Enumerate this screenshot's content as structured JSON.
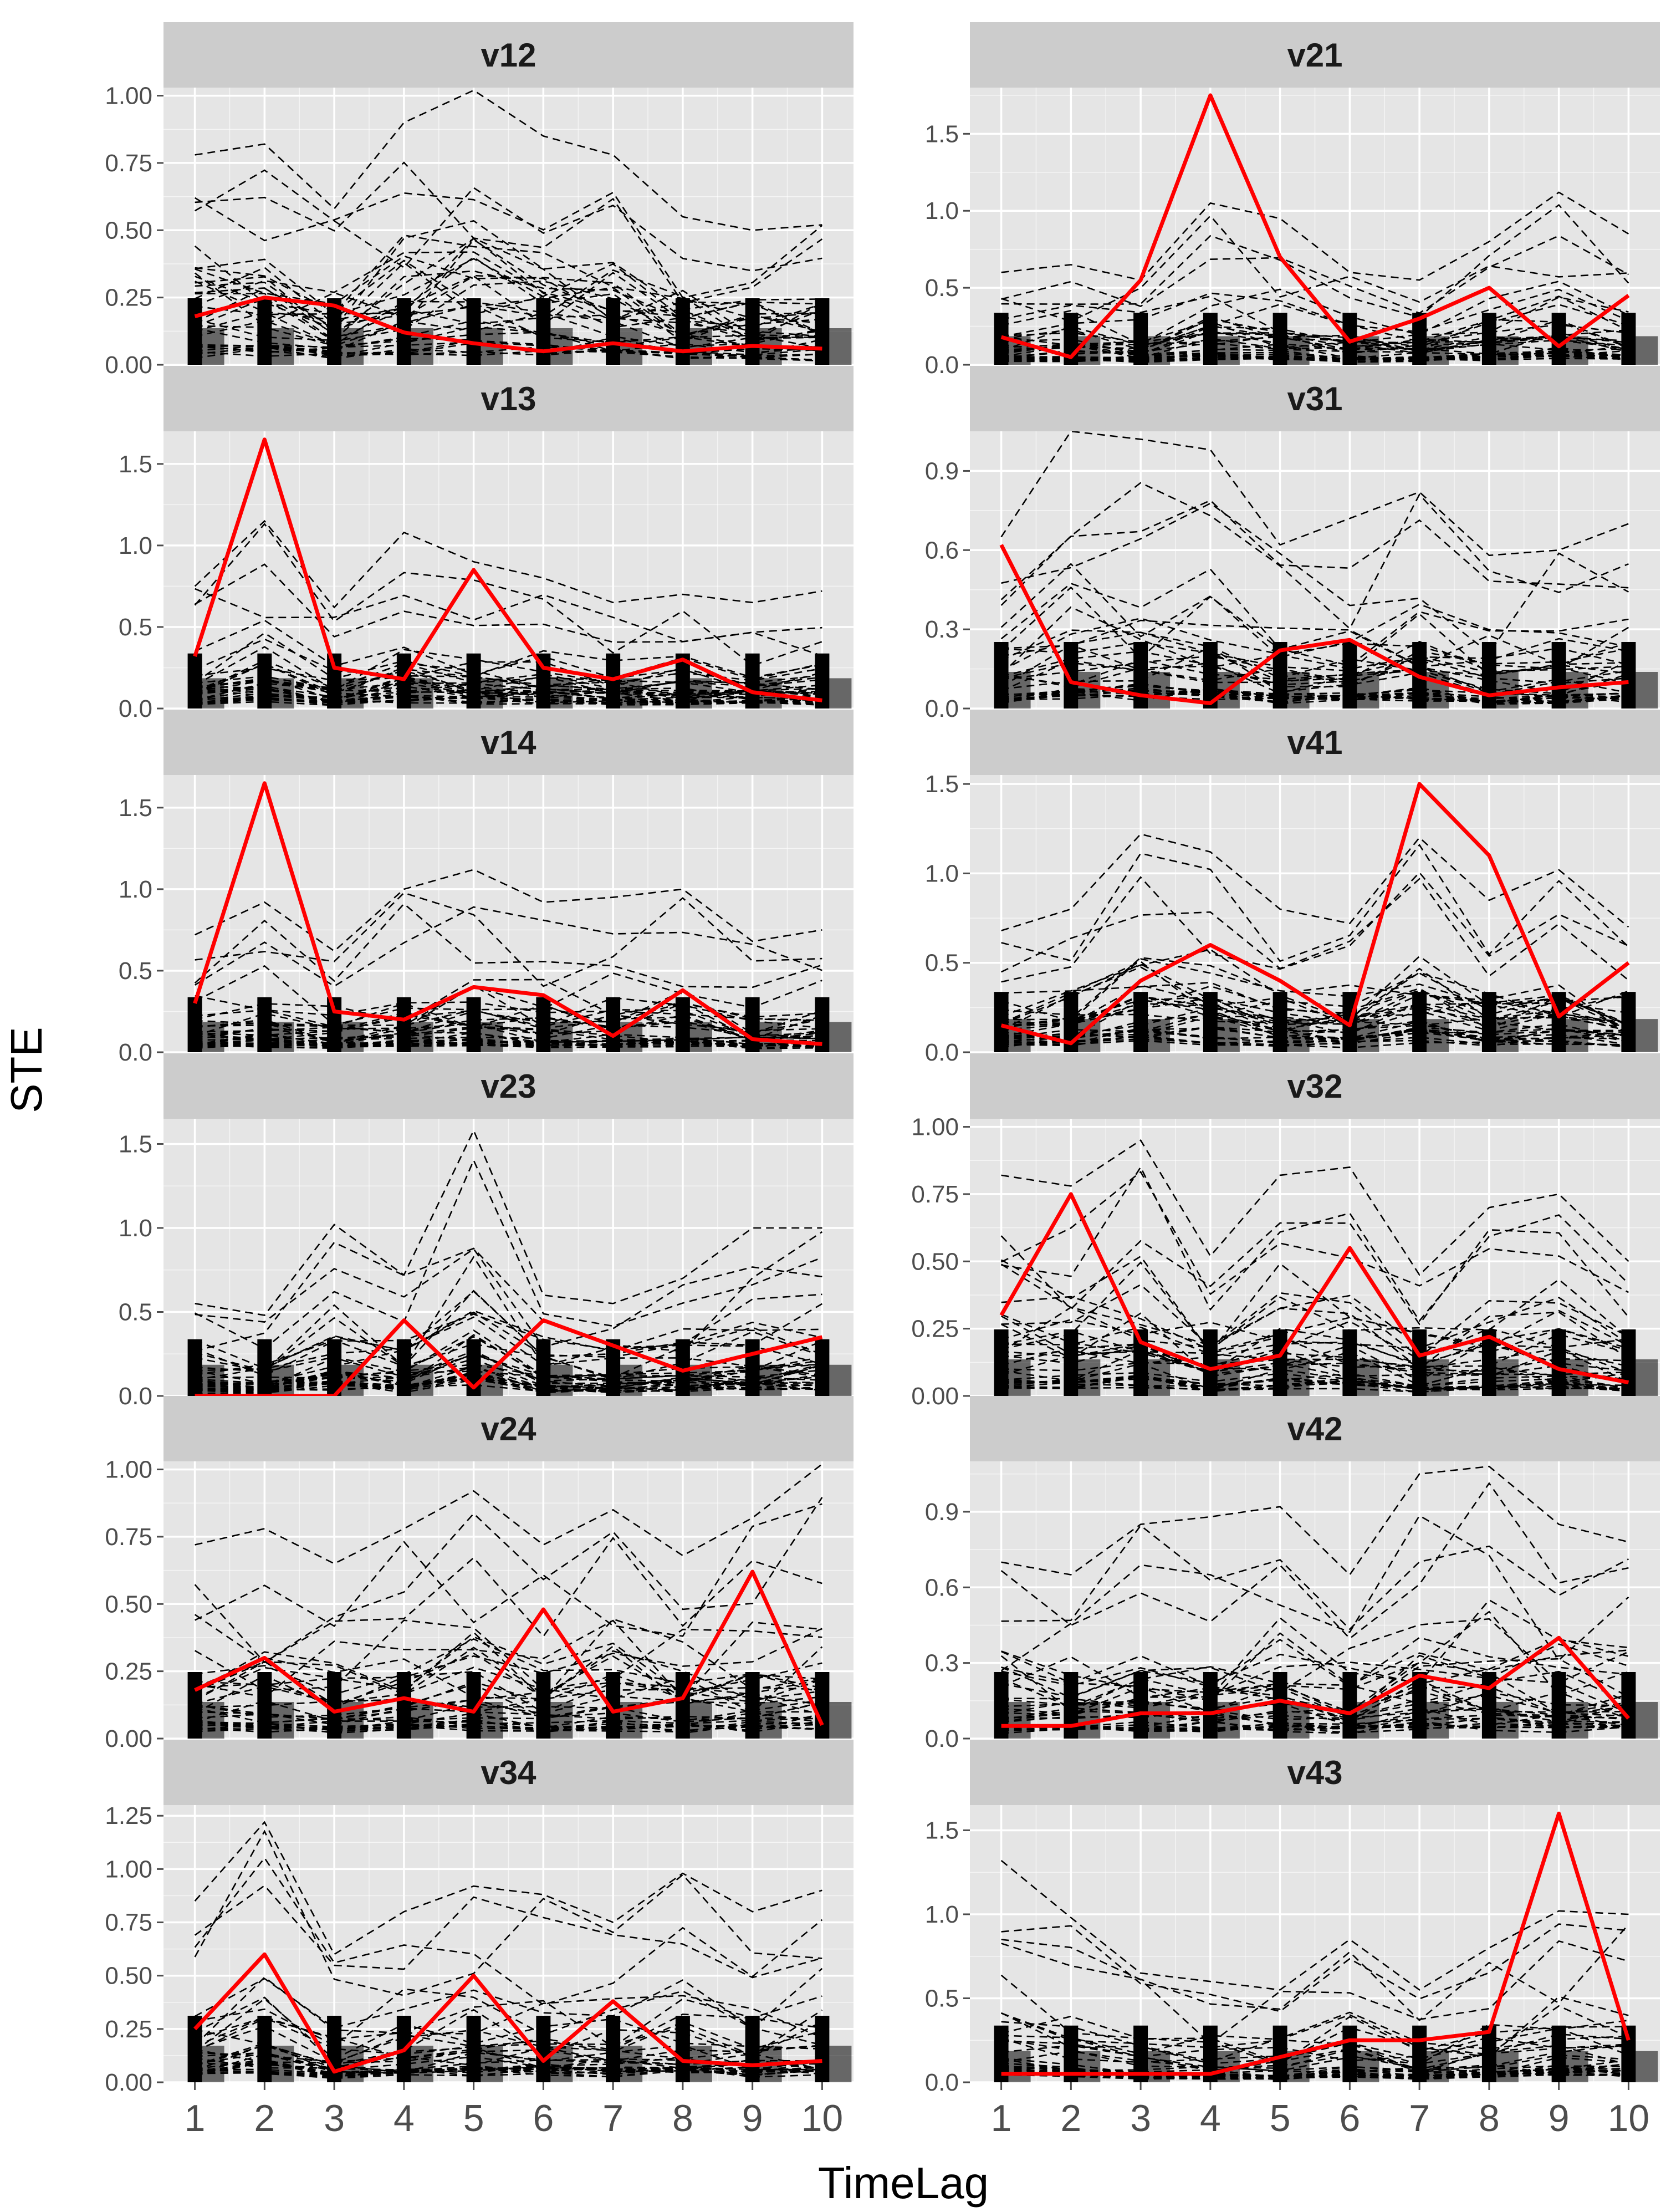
{
  "chart_data": {
    "type": "line",
    "xlabel": "TimeLag",
    "ylabel": "STE",
    "x_ticks": [
      1,
      2,
      3,
      4,
      5,
      6,
      7,
      8,
      9,
      10
    ],
    "colors": {
      "panel_background": "#e5e5e5",
      "grid": "#ffffff",
      "strip_background": "#cccccc",
      "surrogate_lines": "#000000",
      "observed_line": "#ff0000"
    },
    "layout": {
      "columns": 2,
      "rows": 6
    },
    "series_description": {
      "surrogate": "many black dashed lines (surrogate STE values)",
      "observed": "red solid line"
    },
    "panels": [
      {
        "label": "v12",
        "ylim": [
          0,
          1.03
        ],
        "yticks": [
          0,
          0.25,
          0.5,
          0.75,
          1.0
        ],
        "ytick_labels": [
          "0.00",
          "0.25",
          "0.50",
          "0.75",
          "1.00"
        ],
        "observed": [
          0.18,
          0.25,
          0.22,
          0.12,
          0.08,
          0.05,
          0.08,
          0.05,
          0.07,
          0.06
        ],
        "surrogate_max": [
          0.78,
          0.82,
          0.58,
          0.9,
          1.02,
          0.85,
          0.78,
          0.55,
          0.5,
          0.52
        ]
      },
      {
        "label": "v21",
        "ylim": [
          0,
          1.8
        ],
        "yticks": [
          0,
          0.5,
          1.0,
          1.5
        ],
        "ytick_labels": [
          "0.0",
          "0.5",
          "1.0",
          "1.5"
        ],
        "observed": [
          0.18,
          0.05,
          0.55,
          1.75,
          0.7,
          0.15,
          0.3,
          0.5,
          0.12,
          0.45
        ],
        "surrogate_max": [
          0.6,
          0.65,
          0.55,
          1.05,
          0.95,
          0.6,
          0.55,
          0.8,
          1.12,
          0.85
        ]
      },
      {
        "label": "v13",
        "ylim": [
          0,
          1.7
        ],
        "yticks": [
          0,
          0.5,
          1.0,
          1.5
        ],
        "ytick_labels": [
          "0.0",
          "0.5",
          "1.0",
          "1.5"
        ],
        "observed": [
          0.32,
          1.65,
          0.25,
          0.18,
          0.85,
          0.25,
          0.18,
          0.3,
          0.1,
          0.05
        ],
        "surrogate_max": [
          0.75,
          1.15,
          0.62,
          1.08,
          0.9,
          0.8,
          0.65,
          0.7,
          0.65,
          0.72
        ]
      },
      {
        "label": "v31",
        "ylim": [
          0,
          1.05
        ],
        "yticks": [
          0,
          0.3,
          0.6,
          0.9
        ],
        "ytick_labels": [
          "0.0",
          "0.3",
          "0.6",
          "0.9"
        ],
        "observed": [
          0.62,
          0.1,
          0.05,
          0.02,
          0.22,
          0.26,
          0.12,
          0.05,
          0.08,
          0.1
        ],
        "surrogate_max": [
          0.65,
          1.05,
          1.02,
          0.98,
          0.62,
          0.72,
          0.82,
          0.58,
          0.6,
          0.7
        ]
      },
      {
        "label": "v14",
        "ylim": [
          0,
          1.7
        ],
        "yticks": [
          0,
          0.5,
          1.0,
          1.5
        ],
        "ytick_labels": [
          "0.0",
          "0.5",
          "1.0",
          "1.5"
        ],
        "observed": [
          0.3,
          1.65,
          0.25,
          0.2,
          0.4,
          0.35,
          0.1,
          0.38,
          0.08,
          0.05
        ],
        "surrogate_max": [
          0.72,
          0.92,
          0.62,
          1.0,
          1.12,
          0.92,
          0.95,
          1.0,
          0.68,
          0.75
        ]
      },
      {
        "label": "v41",
        "ylim": [
          0,
          1.55
        ],
        "yticks": [
          0,
          0.5,
          1.0,
          1.5
        ],
        "ytick_labels": [
          "0.0",
          "0.5",
          "1.0",
          "1.5"
        ],
        "observed": [
          0.15,
          0.05,
          0.4,
          0.6,
          0.4,
          0.15,
          1.5,
          1.1,
          0.2,
          0.5
        ],
        "surrogate_max": [
          0.68,
          0.8,
          1.22,
          1.12,
          0.8,
          0.72,
          1.2,
          0.85,
          1.02,
          0.7
        ]
      },
      {
        "label": "v23",
        "ylim": [
          0,
          1.65
        ],
        "yticks": [
          0,
          0.5,
          1.0,
          1.5
        ],
        "ytick_labels": [
          "0.0",
          "0.5",
          "1.0",
          "1.5"
        ],
        "observed": [
          0.0,
          0.0,
          0.0,
          0.45,
          0.05,
          0.45,
          0.3,
          0.15,
          0.25,
          0.35
        ],
        "surrogate_max": [
          0.55,
          0.48,
          1.02,
          0.72,
          1.58,
          0.6,
          0.55,
          0.7,
          1.0,
          1.0
        ]
      },
      {
        "label": "v32",
        "ylim": [
          0,
          1.03
        ],
        "yticks": [
          0,
          0.25,
          0.5,
          0.75,
          1.0
        ],
        "ytick_labels": [
          "0.00",
          "0.25",
          "0.50",
          "0.75",
          "1.00"
        ],
        "observed": [
          0.3,
          0.75,
          0.2,
          0.1,
          0.15,
          0.55,
          0.15,
          0.22,
          0.1,
          0.05
        ],
        "surrogate_max": [
          0.82,
          0.78,
          0.95,
          0.52,
          0.82,
          0.85,
          0.45,
          0.7,
          0.75,
          0.5
        ]
      },
      {
        "label": "v24",
        "ylim": [
          0,
          1.03
        ],
        "yticks": [
          0,
          0.25,
          0.5,
          0.75,
          1.0
        ],
        "ytick_labels": [
          "0.00",
          "0.25",
          "0.50",
          "0.75",
          "1.00"
        ],
        "observed": [
          0.18,
          0.3,
          0.1,
          0.15,
          0.1,
          0.48,
          0.1,
          0.15,
          0.62,
          0.05
        ],
        "surrogate_max": [
          0.72,
          0.78,
          0.65,
          0.78,
          0.92,
          0.72,
          0.85,
          0.68,
          0.82,
          1.02
        ]
      },
      {
        "label": "v42",
        "ylim": [
          0,
          1.1
        ],
        "yticks": [
          0,
          0.3,
          0.6,
          0.9
        ],
        "ytick_labels": [
          "0.0",
          "0.3",
          "0.6",
          "0.9"
        ],
        "observed": [
          0.05,
          0.05,
          0.1,
          0.1,
          0.15,
          0.1,
          0.25,
          0.2,
          0.4,
          0.08
        ],
        "surrogate_max": [
          0.7,
          0.65,
          0.85,
          0.88,
          0.92,
          0.65,
          1.05,
          1.08,
          0.85,
          0.78
        ]
      },
      {
        "label": "v34",
        "ylim": [
          0,
          1.3
        ],
        "yticks": [
          0,
          0.25,
          0.5,
          0.75,
          1.0,
          1.25
        ],
        "ytick_labels": [
          "0.00",
          "0.25",
          "0.50",
          "0.75",
          "1.00",
          "1.25"
        ],
        "observed": [
          0.25,
          0.6,
          0.05,
          0.15,
          0.5,
          0.1,
          0.38,
          0.1,
          0.08,
          0.1
        ],
        "surrogate_max": [
          0.85,
          1.22,
          0.6,
          0.8,
          0.92,
          0.88,
          0.75,
          0.98,
          0.8,
          0.9
        ]
      },
      {
        "label": "v43",
        "ylim": [
          0,
          1.65
        ],
        "yticks": [
          0,
          0.5,
          1.0,
          1.5
        ],
        "ytick_labels": [
          "0.0",
          "0.5",
          "1.0",
          "1.5"
        ],
        "observed": [
          0.05,
          0.05,
          0.05,
          0.05,
          0.15,
          0.25,
          0.25,
          0.3,
          1.6,
          0.25
        ],
        "surrogate_max": [
          1.32,
          0.98,
          0.65,
          0.6,
          0.55,
          0.85,
          0.55,
          0.8,
          1.02,
          1.0
        ]
      }
    ]
  }
}
